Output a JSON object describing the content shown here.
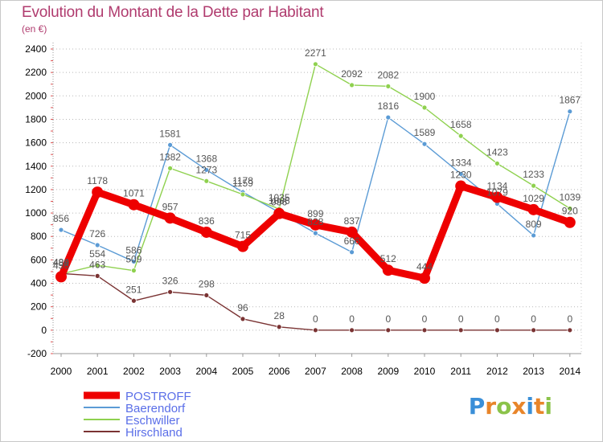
{
  "title": "Evolution du Montant de la Dette par Habitant",
  "subtitle": "(en €)",
  "logo": {
    "text": "Proxiti",
    "colors": [
      "#3a8fd8",
      "#e8852a",
      "#8bc34a",
      "#e8852a",
      "#3a8fd8",
      "#e8852a",
      "#8bc34a"
    ]
  },
  "chart_data": {
    "type": "line",
    "x": [
      "2000",
      "2001",
      "2002",
      "2003",
      "2004",
      "2005",
      "2006",
      "2007",
      "2008",
      "2009",
      "2010",
      "2011",
      "2012",
      "2013",
      "2014"
    ],
    "ylim": [
      -200,
      2400
    ],
    "yticks": [
      -200,
      0,
      200,
      400,
      600,
      800,
      1000,
      1200,
      1400,
      1600,
      1800,
      2000,
      2200,
      2400
    ],
    "grid": "horizontal dotted",
    "legend_position": "bottom-left",
    "title": "Evolution du Montant de la Dette par Habitant",
    "ylabel": "(en €)",
    "series": [
      {
        "name": "POSTROFF",
        "color": "#ee0000",
        "values": [
          456,
          1178,
          1071,
          957,
          836,
          715,
          996,
          899,
          837,
          512,
          444,
          1230,
          1134,
          1029,
          920
        ]
      },
      {
        "name": "Baerendorf",
        "color": "#5b9bd5",
        "values": [
          856,
          726,
          586,
          1581,
          1368,
          1178,
          1006,
          828,
          666,
          1816,
          1589,
          1334,
          1079,
          809,
          1867
        ]
      },
      {
        "name": "Eschwiller",
        "color": "#8fd14f",
        "values": [
          480,
          554,
          509,
          1382,
          1273,
          1159,
          1035,
          2271,
          2092,
          2082,
          1900,
          1658,
          1423,
          1233,
          1039
        ]
      },
      {
        "name": "Hirschland",
        "color": "#7a3333",
        "values": [
          484,
          463,
          251,
          326,
          298,
          96,
          28,
          0,
          0,
          0,
          0,
          0,
          0,
          0,
          0
        ]
      }
    ]
  }
}
